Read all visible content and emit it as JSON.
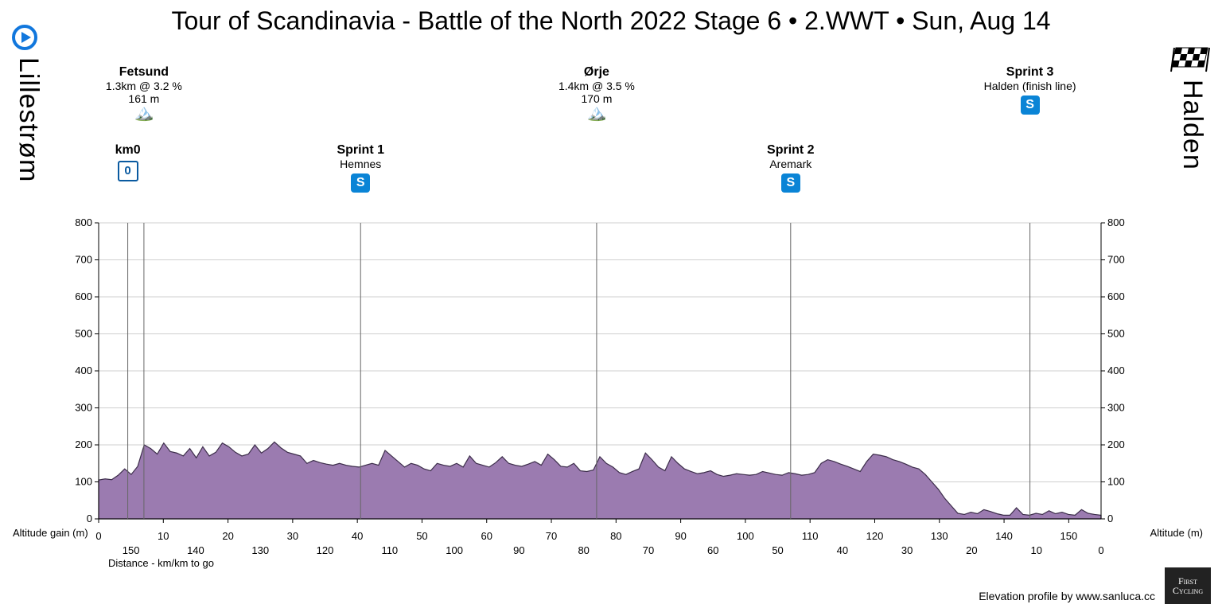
{
  "title": "Tour of Scandinavia - Battle of the North 2022 Stage 6 • 2.WWT • Sun, Aug 14",
  "start_city": "Lillestrøm",
  "finish_city": "Halden",
  "axis": {
    "left_label": "Altitude gain (m)",
    "right_label": "Altitude (m)",
    "distance_label": "Distance - km/km to go",
    "y_ticks": [
      0,
      100,
      200,
      300,
      400,
      500,
      600,
      700,
      800
    ],
    "x_ticks_top": [
      0,
      10,
      20,
      30,
      40,
      50,
      60,
      70,
      80,
      90,
      100,
      110,
      120,
      130,
      140,
      150
    ],
    "x_ticks_bottom": [
      150,
      140,
      130,
      120,
      110,
      100,
      90,
      80,
      70,
      60,
      50,
      40,
      30,
      20,
      10,
      0
    ],
    "ylim": [
      0,
      800
    ],
    "xlim_km": [
      0,
      155
    ]
  },
  "credit": "Elevation profile by www.sanluca.cc",
  "logo": {
    "line1": "First",
    "line2": "Cycling"
  },
  "style": {
    "area_fill": "#9b7bb0",
    "area_stroke": "#3c2d4a",
    "grid_color": "#cfcfcf",
    "axis_color": "#000000",
    "marker_line": "#666666",
    "background": "#ffffff",
    "title_fontsize": 32,
    "city_fontsize": 34,
    "tick_fontsize": 13
  },
  "markers": [
    {
      "km": 4.5,
      "lines": [
        "km0"
      ],
      "badge": "0",
      "badge_type": "km0",
      "drop": true
    },
    {
      "km": 7,
      "lines": [
        "Fetsund",
        "1.3km @ 3.2 %",
        "161 m"
      ],
      "icon": "climb",
      "drop": true,
      "high": true
    },
    {
      "km": 40.5,
      "lines": [
        "Sprint 1",
        "Hemnes"
      ],
      "badge": "S",
      "badge_type": "sprint",
      "drop": true
    },
    {
      "km": 77,
      "lines": [
        "Ørje",
        "1.4km @ 3.5 %",
        "170 m"
      ],
      "icon": "climb",
      "drop": true,
      "high": true
    },
    {
      "km": 107,
      "lines": [
        "Sprint 2",
        "Aremark"
      ],
      "badge": "S",
      "badge_type": "sprint",
      "drop": true
    },
    {
      "km": 144,
      "lines": [
        "Sprint 3",
        "Halden (finish line)"
      ],
      "badge": "S",
      "badge_type": "sprint",
      "drop": true,
      "high": true
    }
  ],
  "elevation_profile_m": [
    105,
    108,
    106,
    118,
    135,
    120,
    142,
    200,
    190,
    175,
    205,
    182,
    178,
    170,
    190,
    165,
    195,
    170,
    180,
    205,
    195,
    180,
    170,
    175,
    200,
    178,
    190,
    208,
    192,
    180,
    175,
    170,
    150,
    158,
    152,
    148,
    145,
    150,
    145,
    142,
    140,
    145,
    150,
    145,
    185,
    170,
    155,
    140,
    150,
    145,
    135,
    130,
    150,
    145,
    142,
    150,
    140,
    170,
    150,
    145,
    140,
    152,
    168,
    150,
    145,
    142,
    148,
    155,
    145,
    175,
    160,
    142,
    140,
    150,
    130,
    128,
    132,
    168,
    150,
    140,
    125,
    120,
    128,
    135,
    178,
    160,
    140,
    130,
    168,
    150,
    135,
    128,
    122,
    125,
    130,
    120,
    115,
    118,
    122,
    120,
    118,
    120,
    128,
    124,
    120,
    118,
    125,
    122,
    118,
    120,
    125,
    150,
    160,
    155,
    148,
    142,
    135,
    128,
    155,
    175,
    172,
    168,
    160,
    155,
    148,
    140,
    135,
    120,
    100,
    80,
    55,
    35,
    15,
    12,
    18,
    14,
    25,
    20,
    14,
    10,
    10,
    30,
    12,
    10,
    15,
    12,
    22,
    14,
    18,
    12,
    10,
    25,
    15,
    12,
    10
  ]
}
